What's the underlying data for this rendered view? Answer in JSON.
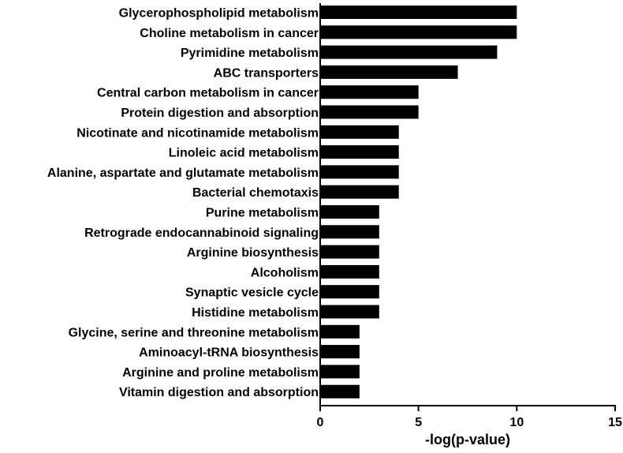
{
  "chart_data": {
    "type": "bar",
    "orientation": "horizontal",
    "categories": [
      "Glycerophospholipid metabolism",
      "Choline metabolism in cancer",
      "Pyrimidine metabolism",
      "ABC transporters",
      "Central carbon metabolism in cancer",
      "Protein digestion and absorption",
      "Nicotinate and nicotinamide metabolism",
      "Linoleic acid metabolism",
      "Alanine, aspartate and glutamate metabolism",
      "Bacterial chemotaxis",
      "Purine metabolism",
      "Retrograde endocannabinoid signaling",
      "Arginine biosynthesis",
      "Alcoholism",
      "Synaptic vesicle cycle",
      "Histidine metabolism",
      "Glycine, serine and threonine metabolism",
      "Aminoacyl-tRNA biosynthesis",
      "Arginine and proline metabolism",
      "Vitamin digestion and absorption"
    ],
    "values": [
      10,
      10,
      9,
      7,
      5,
      5,
      4,
      4,
      4,
      4,
      3,
      3,
      3,
      3,
      3,
      3,
      2,
      2,
      2,
      2
    ],
    "xlabel": "-log(p-value)",
    "ylabel": "",
    "title": "",
    "xlim": [
      0,
      15
    ],
    "xticks": [
      "0",
      "5",
      "10",
      "15"
    ],
    "grid": false,
    "bar_color": "#000000"
  }
}
